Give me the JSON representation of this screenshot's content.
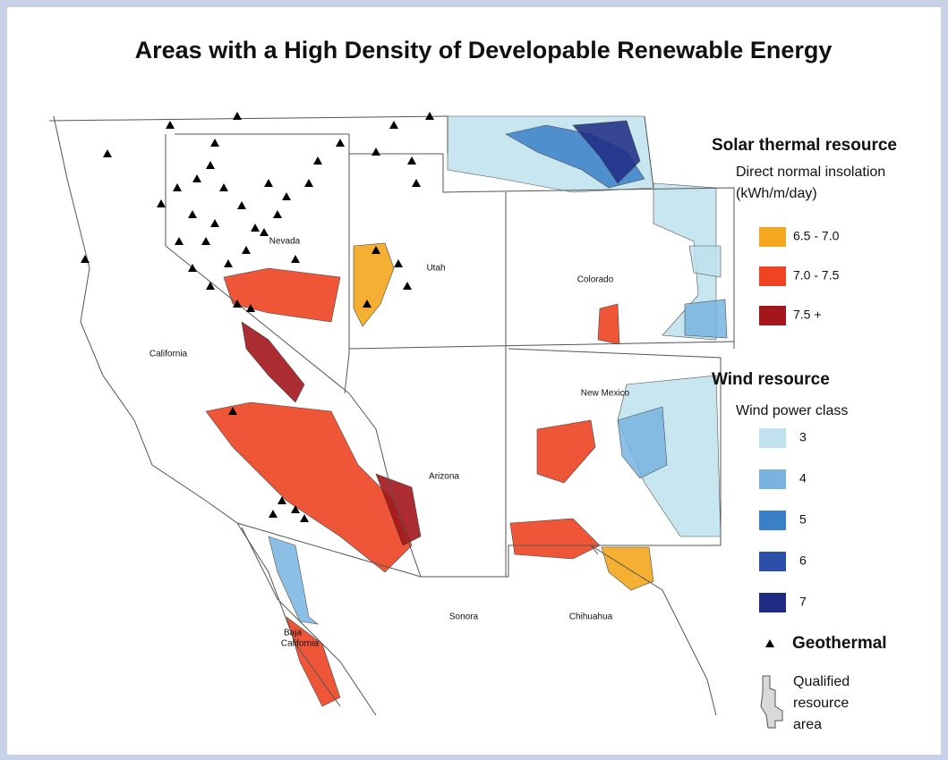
{
  "title": "Areas with a High Density of Developable Renewable Energy",
  "map": {
    "labels": [
      "Nevada",
      "Utah",
      "Colorado",
      "California",
      "New Mexico",
      "Arizona",
      "Sonora",
      "Chihuahua",
      [
        "Baja",
        "California"
      ]
    ]
  },
  "legend": {
    "solar": {
      "title": "Solar thermal resource",
      "subtitle": "Direct normal insolation",
      "units": "(kWh/m/day)",
      "items": [
        {
          "label": "6.5 - 7.0",
          "color": "#f5a81f"
        },
        {
          "label": "7.0 - 7.5",
          "color": "#ee4423"
        },
        {
          "label": "7.5 +",
          "color": "#a3161b"
        }
      ]
    },
    "wind": {
      "title": "Wind resource",
      "subtitle": "Wind power class",
      "items": [
        {
          "label": "3",
          "color": "#bfe2ee"
        },
        {
          "label": "4",
          "color": "#79b4e1"
        },
        {
          "label": "5",
          "color": "#3a80c9"
        },
        {
          "label": "6",
          "color": "#2c4fa8"
        },
        {
          "label": "7",
          "color": "#1e2b83"
        }
      ]
    },
    "geothermal": "Geothermal",
    "qualified": [
      "Qualified",
      "resource",
      "area"
    ]
  }
}
